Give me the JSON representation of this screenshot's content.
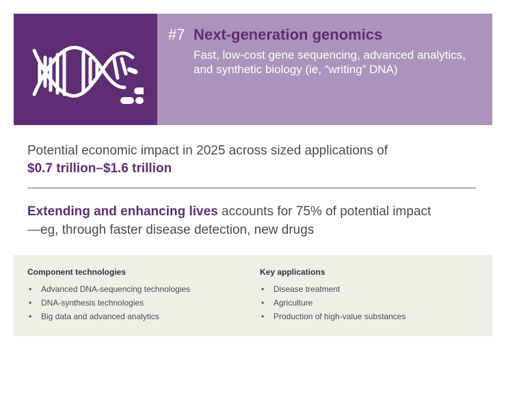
{
  "header": {
    "rank": "#7",
    "title": "Next-generation genomics",
    "subtitle": "Fast, low-cost gene sequencing, advanced analytics, and synthetic biology (ie, “writing” DNA)",
    "icon": "dna-helix-icon"
  },
  "impact": {
    "text": "Potential economic impact in 2025 across sized applications of",
    "value": "$0.7 trillion–$1.6 trillion"
  },
  "lives": {
    "highlight": "Extending and enhancing lives",
    "text": " accounts for 75% of potential impact—eg, through faster disease detection, new drugs"
  },
  "component_technologies": {
    "heading": "Component technologies",
    "items": [
      "Advanced DNA-sequencing technologies",
      "DNA-synthesis technologies",
      "Big data and advanced analytics"
    ]
  },
  "key_applications": {
    "heading": "Key applications",
    "items": [
      "Disease treatment",
      "Agriculture",
      "Production of high-value substances"
    ]
  },
  "colors": {
    "purple_dark": "#5e2d73",
    "purple_light": "#ac93bb",
    "panel_bg": "#eef0e8"
  }
}
